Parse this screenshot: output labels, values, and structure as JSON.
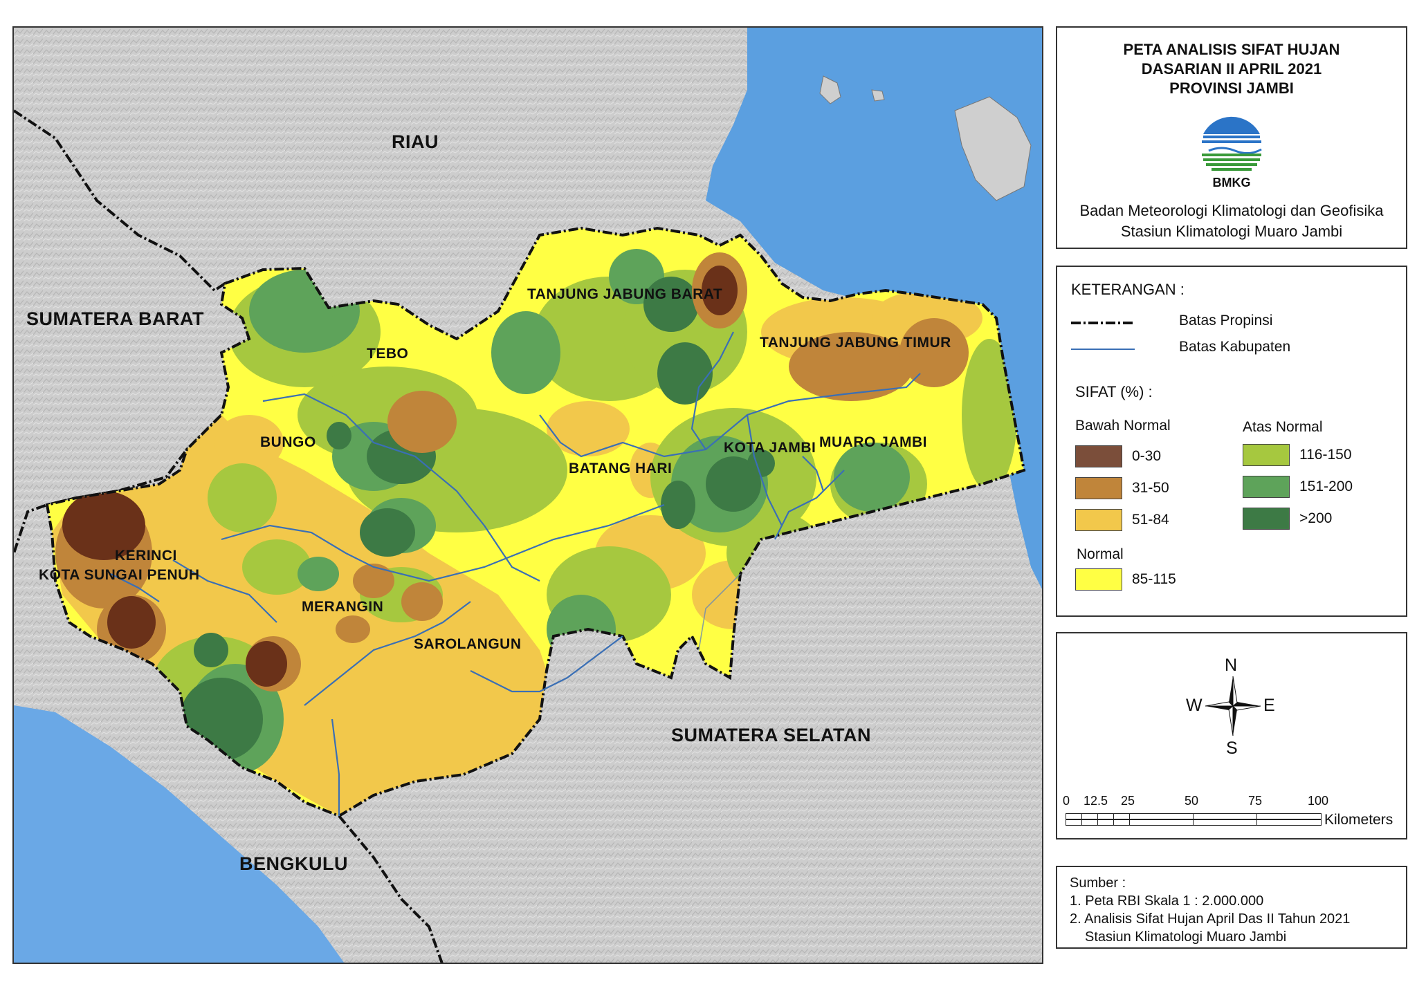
{
  "map": {
    "regions": {
      "riau": "RIAU",
      "sumbar": "SUMATERA BARAT",
      "sumsel": "SUMATERA SELATAN",
      "bengkulu": "BENGKULU"
    },
    "kabupaten": {
      "tanjabbar": "TANJUNG JABUNG BARAT",
      "tanjabtim": "TANJUNG JABUNG TIMUR",
      "tebo": "TEBO",
      "bungo": "BUNGO",
      "batanghari": "BATANG HARI",
      "kotajambi": "KOTA JAMBI",
      "muarojambi": "MUARO JAMBI",
      "kerinci": "KERINCI",
      "sungaipenuh": "KOTA SUNGAI PENUH",
      "merangin": "MERANGIN",
      "sarolangun": "SAROLANGUN"
    }
  },
  "title": {
    "line1": "PETA ANALISIS SIFAT HUJAN",
    "line2": "DASARIAN II APRIL 2021",
    "line3": "PROVINSI JAMBI",
    "logo_text": "BMKG",
    "org1": "Badan Meteorologi Klimatologi dan Geofisika",
    "org2": "Stasiun Klimatologi Muaro Jambi"
  },
  "legend": {
    "heading": "KETERANGAN :",
    "line_items": [
      {
        "label": "Batas Propinsi",
        "style": "dash-dot",
        "color": "#111111"
      },
      {
        "label": "Batas Kabupaten",
        "style": "solid",
        "color": "#3a6fb5"
      }
    ],
    "sifat_heading": "SIFAT (%) :",
    "bawah_normal": {
      "heading": "Bawah Normal",
      "classes": [
        {
          "label": "0-30",
          "color": "#7b4e3a"
        },
        {
          "label": "31-50",
          "color": "#c0853a"
        },
        {
          "label": "51-84",
          "color": "#f2c84b"
        }
      ]
    },
    "normal": {
      "heading": "Normal",
      "classes": [
        {
          "label": "85-115",
          "color": "#ffff44"
        }
      ]
    },
    "atas_normal": {
      "heading": "Atas Normal",
      "classes": [
        {
          "label": "116-150",
          "color": "#a6c83f"
        },
        {
          "label": "151-200",
          "color": "#5ea35a"
        },
        {
          "label": ">200",
          "color": "#3d7a45"
        }
      ]
    }
  },
  "compass": {
    "n": "N",
    "s": "S",
    "e": "E",
    "w": "W"
  },
  "scale": {
    "ticks": [
      "0",
      "12.5",
      "25",
      "50",
      "75",
      "100"
    ],
    "unit": "Kilometers"
  },
  "source": {
    "heading": "Sumber :",
    "items": [
      "1. Peta RBI Skala 1 : 2.000.000",
      "2. Analisis Sifat Hujan April Das II Tahun 2021",
      "Stasiun Klimatologi Muaro Jambi"
    ]
  }
}
